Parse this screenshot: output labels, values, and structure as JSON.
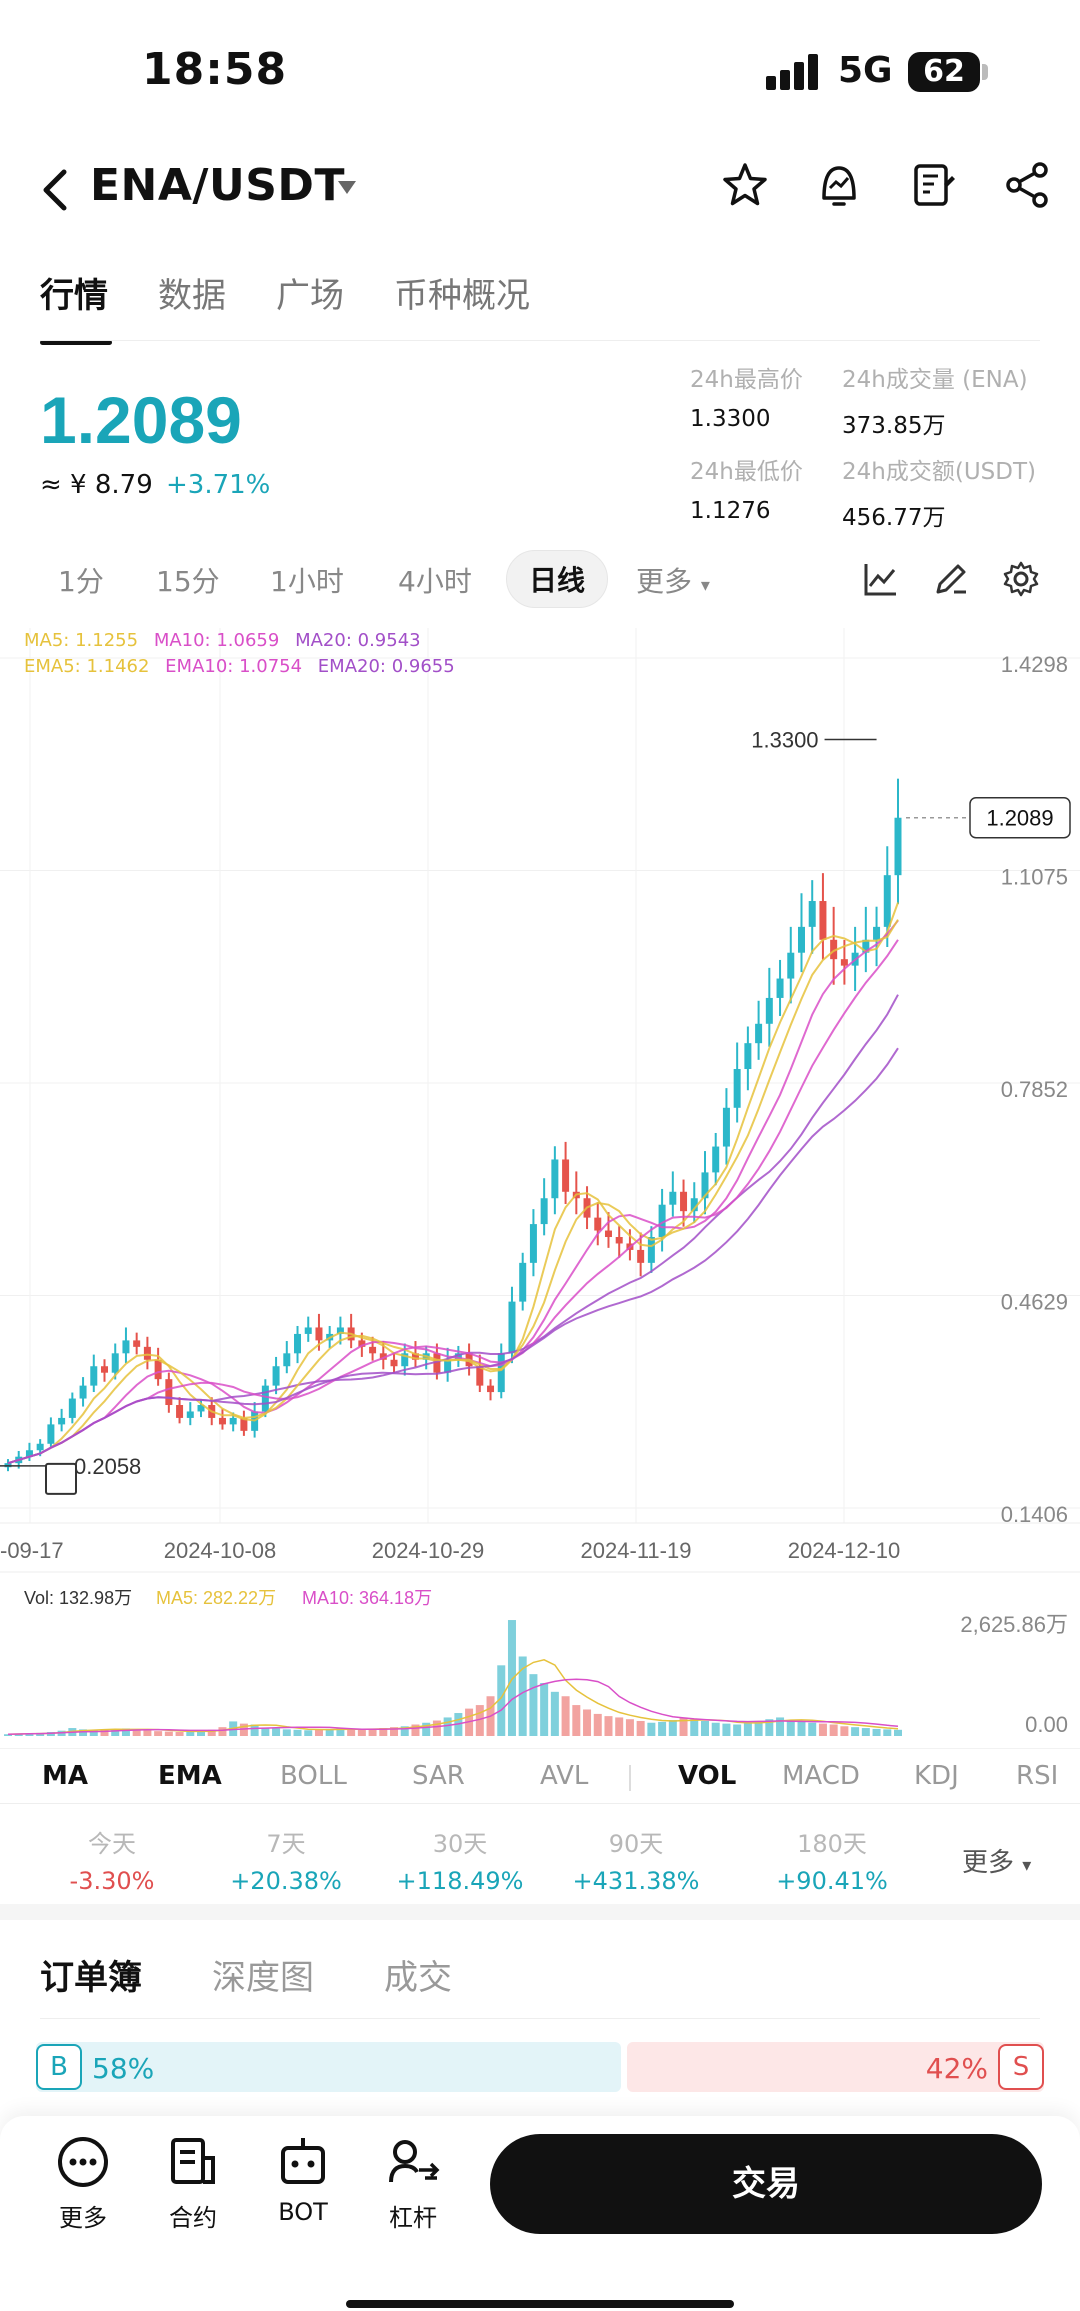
{
  "status": {
    "time": "18:58",
    "network": "5G",
    "battery": "62"
  },
  "header": {
    "pair": "ENA/USDT"
  },
  "tabs": [
    "行情",
    "数据",
    "广场",
    "币种概况"
  ],
  "ticker": {
    "price": "1.2089",
    "cny": "≈ ¥ 8.79",
    "change": "+3.71%",
    "high_label": "24h最高价",
    "high": "1.3300",
    "low_label": "24h最低价",
    "low": "1.1276",
    "vol_label": "24h成交量 (ENA)",
    "vol": "373.85万",
    "amt_label": "24h成交额(USDT)",
    "amt": "456.77万"
  },
  "periods": [
    "1分",
    "15分",
    "1小时",
    "4小时",
    "日线"
  ],
  "period_more": "更多",
  "ma_legend": {
    "ma5": "MA5: 1.1255",
    "ma10": "MA10: 1.0659",
    "ma20": "MA20: 0.9543",
    "ema5": "EMA5: 1.1462",
    "ema10": "EMA10: 1.0754",
    "ema20": "EMA20: 0.9655"
  },
  "chart_data": {
    "type": "candlestick",
    "y_axis_labels": [
      "1.4298",
      "1.1075",
      "0.7852",
      "0.4629",
      "0.1406"
    ],
    "x_axis_labels": [
      "-09-17",
      "2024-10-08",
      "2024-10-29",
      "2024-11-19",
      "2024-12-10"
    ],
    "ylim": [
      0.1406,
      1.4298
    ],
    "high_marker": "1.3300",
    "low_marker": "0.2058",
    "last_price_tag": "1.2089",
    "colors": {
      "up": "#2bb7c9",
      "down": "#e5534b",
      "ma5": "#e6c23c",
      "ma10": "#d94fc8",
      "ma20": "#a24fc8"
    },
    "closes": [
      0.21,
      0.22,
      0.23,
      0.24,
      0.27,
      0.28,
      0.31,
      0.33,
      0.36,
      0.35,
      0.38,
      0.4,
      0.39,
      0.37,
      0.34,
      0.3,
      0.28,
      0.29,
      0.3,
      0.28,
      0.27,
      0.28,
      0.26,
      0.29,
      0.33,
      0.36,
      0.38,
      0.41,
      0.42,
      0.4,
      0.41,
      0.42,
      0.4,
      0.39,
      0.38,
      0.37,
      0.36,
      0.38,
      0.37,
      0.38,
      0.35,
      0.37,
      0.38,
      0.36,
      0.33,
      0.32,
      0.38,
      0.46,
      0.52,
      0.58,
      0.62,
      0.68,
      0.63,
      0.62,
      0.59,
      0.57,
      0.56,
      0.55,
      0.54,
      0.52,
      0.56,
      0.61,
      0.63,
      0.6,
      0.62,
      0.66,
      0.7,
      0.76,
      0.82,
      0.86,
      0.89,
      0.93,
      0.96,
      1.0,
      1.04,
      1.08,
      1.02,
      0.99,
      0.98,
      1.0,
      1.02,
      1.04,
      1.12,
      1.2089
    ],
    "volume": {
      "legend_vol": "Vol: 132.98万",
      "legend_ma5": "MA5: 282.22万",
      "legend_ma10": "MA10: 364.18万",
      "y_top": "2,625.86万",
      "y_bottom": "0.00",
      "values": [
        40,
        50,
        60,
        70,
        90,
        120,
        180,
        150,
        130,
        140,
        160,
        170,
        150,
        130,
        110,
        100,
        90,
        95,
        120,
        140,
        200,
        330,
        280,
        260,
        180,
        170,
        150,
        140,
        130,
        150,
        160,
        170,
        150,
        140,
        160,
        180,
        200,
        220,
        260,
        300,
        350,
        420,
        520,
        620,
        700,
        900,
        1600,
        2625,
        1800,
        1400,
        1200,
        1000,
        900,
        700,
        600,
        500,
        450,
        420,
        380,
        340,
        300,
        320,
        360,
        420,
        380,
        340,
        300,
        280,
        260,
        300,
        340,
        380,
        420,
        360,
        320,
        300,
        280,
        260,
        220,
        200,
        180,
        160,
        150,
        140
      ]
    }
  },
  "indicators": [
    "MA",
    "EMA",
    "BOLL",
    "SAR",
    "AVL",
    "VOL",
    "MACD",
    "KDJ",
    "RSI"
  ],
  "performance": [
    {
      "label": "今天",
      "value": "-3.30%"
    },
    {
      "label": "7天",
      "value": "+20.38%"
    },
    {
      "label": "30天",
      "value": "+118.49%"
    },
    {
      "label": "90天",
      "value": "+431.38%"
    },
    {
      "label": "180天",
      "value": "+90.41%"
    }
  ],
  "perf_more": "更多",
  "book_tabs": [
    "订单簿",
    "深度图",
    "成交"
  ],
  "ratio": {
    "buy_letter": "B",
    "buy_pct": "58%",
    "sell_letter": "S",
    "sell_pct": "42%",
    "buy_fraction": 0.58
  },
  "bottom": {
    "more": "更多",
    "contract": "合约",
    "bot": "BOT",
    "lever": "杠杆",
    "trade": "交易"
  }
}
